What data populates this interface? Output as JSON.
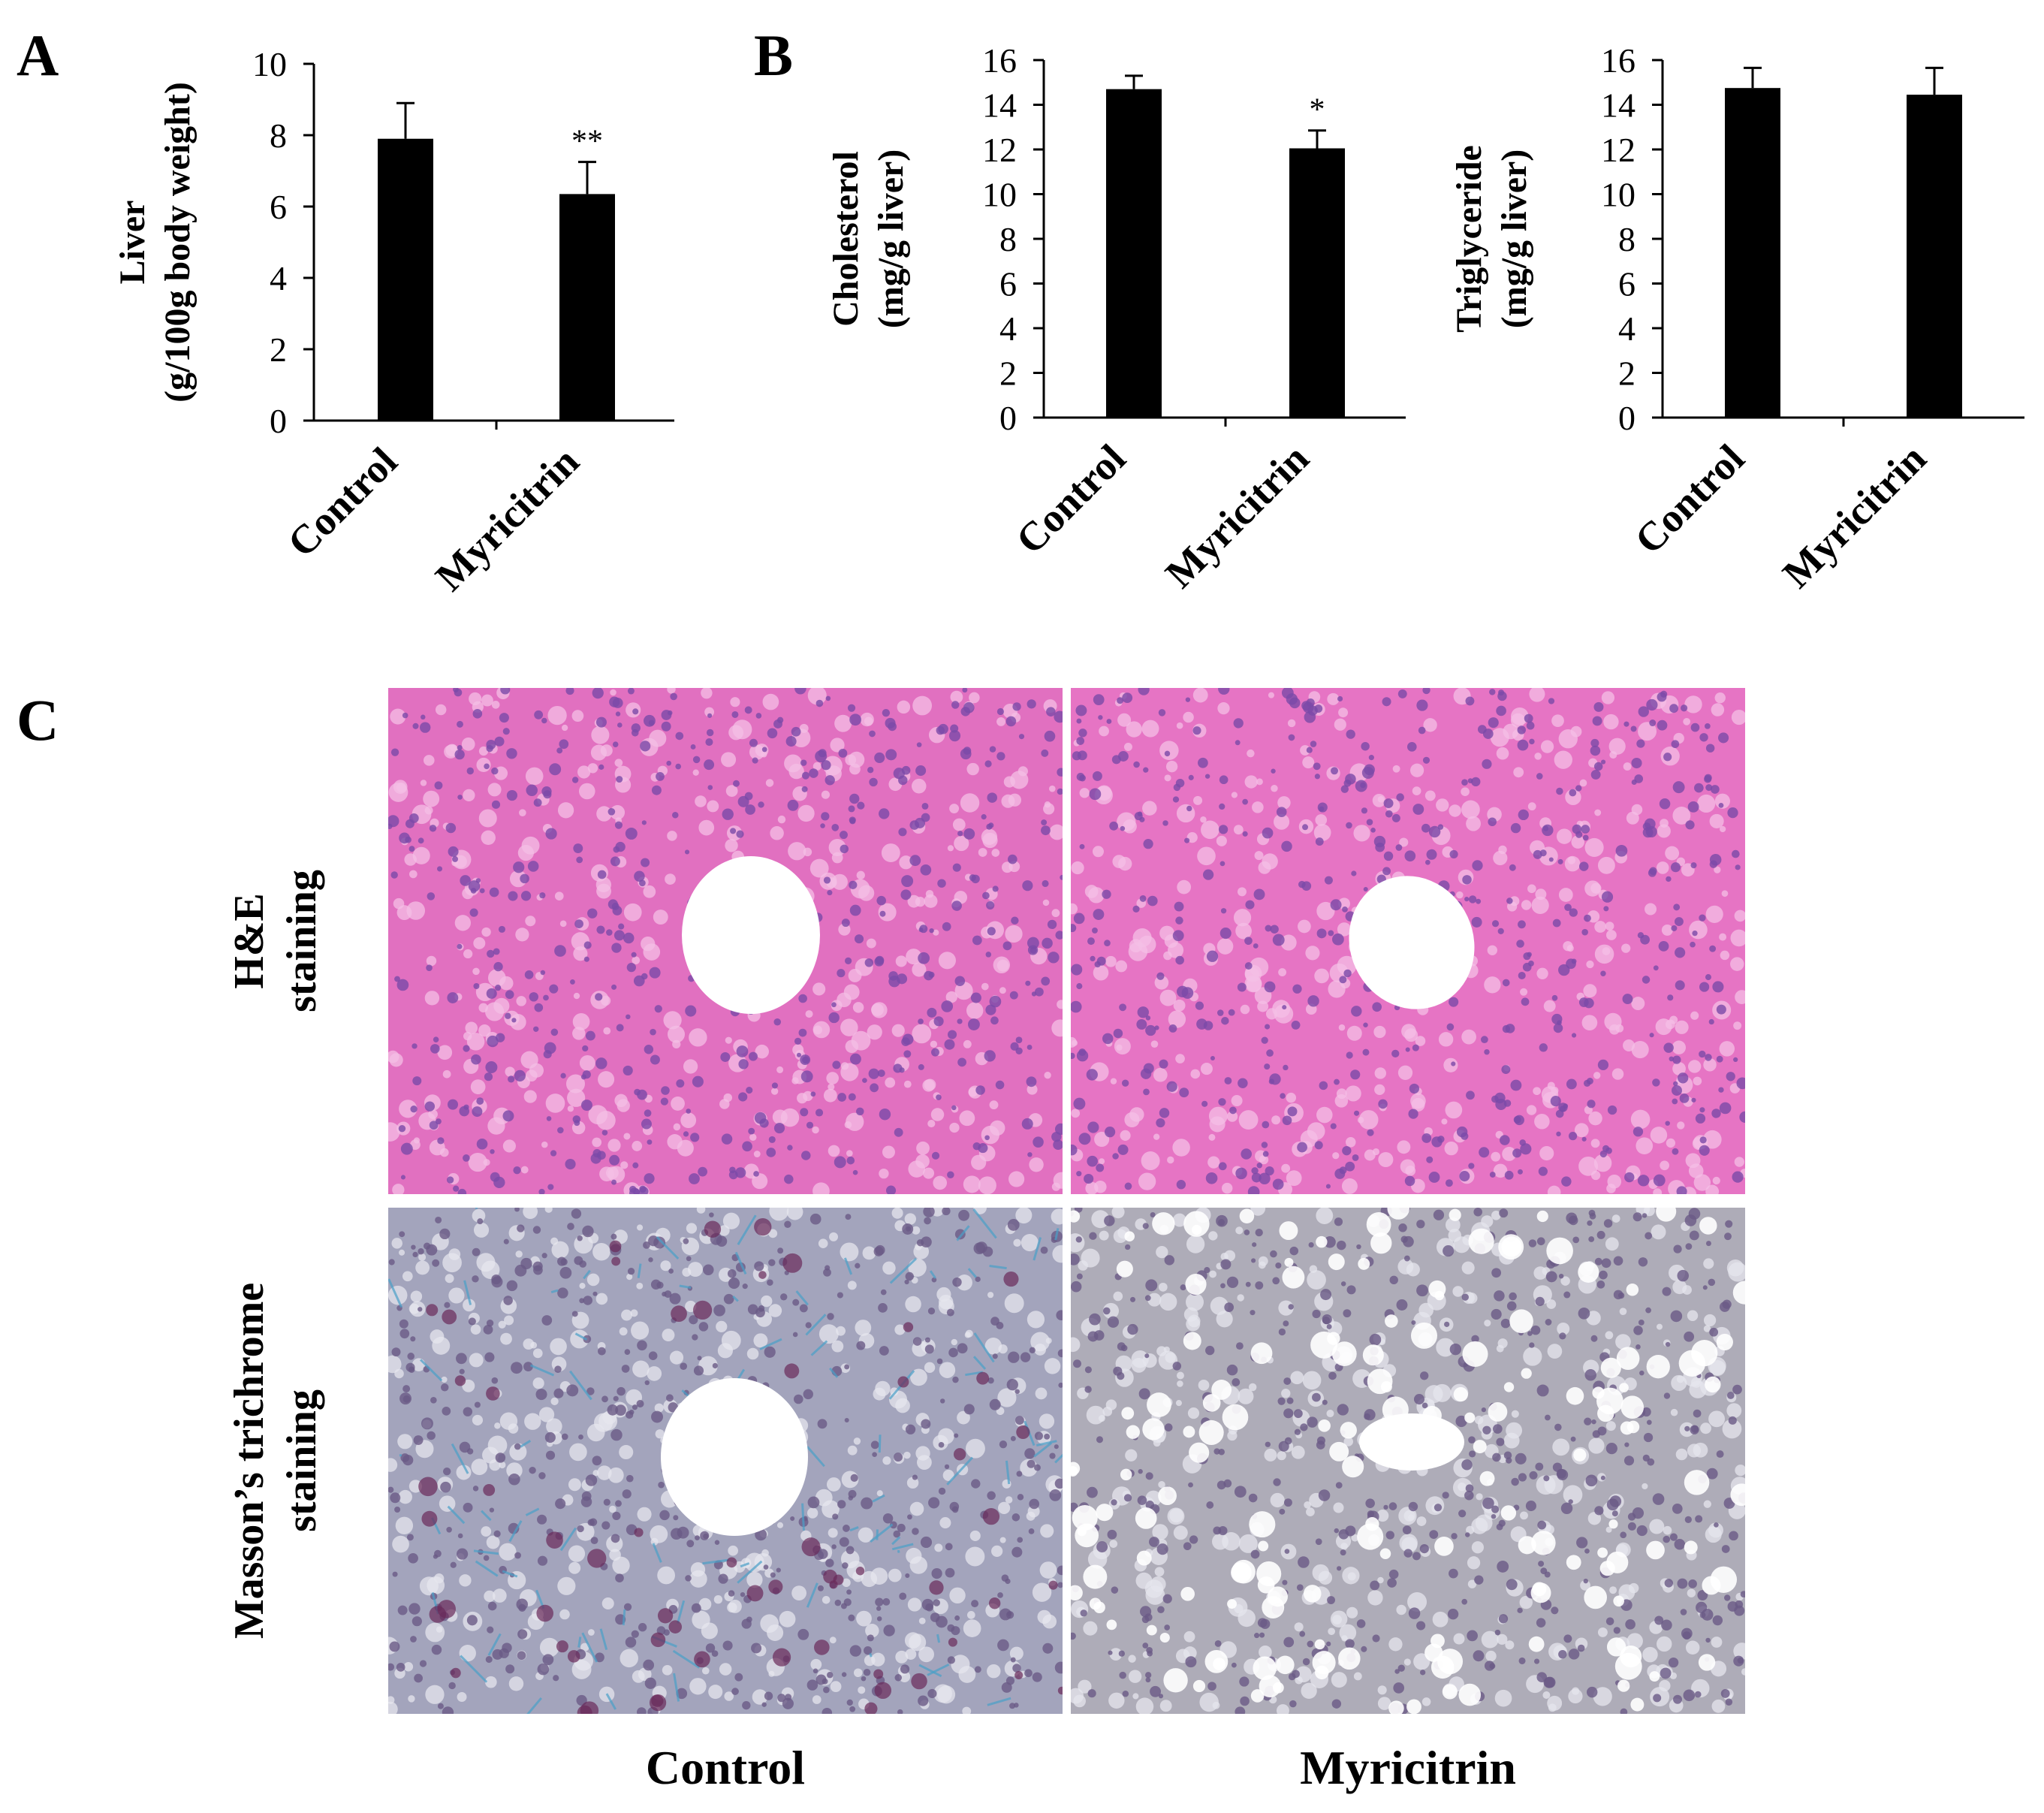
{
  "panels": {
    "a_letter": "A",
    "b_letter": "B",
    "c_letter": "C"
  },
  "chart_data": [
    {
      "type": "bar",
      "panel": "A",
      "categories": [
        "Control",
        "Myricitrin"
      ],
      "values": [
        7.9,
        6.35
      ],
      "errors": [
        1.0,
        0.9
      ],
      "significance": [
        "",
        "**"
      ],
      "ylabel_lines": [
        "Liver",
        "(g/100g body weight)"
      ],
      "yticks": [
        0,
        2,
        4,
        6,
        8,
        10
      ],
      "ylim": [
        0,
        10
      ],
      "colors": [
        "#000000",
        "#000000"
      ]
    },
    {
      "type": "bar",
      "panel": "B",
      "categories": [
        "Control",
        "Myricitrin"
      ],
      "values": [
        14.7,
        12.05
      ],
      "errors": [
        0.6,
        0.8
      ],
      "significance": [
        "",
        "*"
      ],
      "ylabel_lines": [
        "Cholesterol",
        "(mg/g liver)"
      ],
      "yticks": [
        0,
        2,
        4,
        6,
        8,
        10,
        12,
        14,
        16
      ],
      "ylim": [
        0,
        16
      ],
      "colors": [
        "#000000",
        "#000000"
      ]
    },
    {
      "type": "bar",
      "panel": "B",
      "categories": [
        "Control",
        "Myricitrin"
      ],
      "values": [
        14.75,
        14.45
      ],
      "errors": [
        0.9,
        1.2
      ],
      "significance": [
        "",
        ""
      ],
      "ylabel_lines": [
        "Triglyceride",
        "(mg/g liver)"
      ],
      "yticks": [
        0,
        2,
        4,
        6,
        8,
        10,
        12,
        14,
        16
      ],
      "ylim": [
        0,
        16
      ],
      "colors": [
        "#000000",
        "#000000"
      ]
    }
  ],
  "histology": {
    "row_labels": [
      [
        "H&E",
        "staining"
      ],
      [
        "Masson’s trichrome",
        "staining"
      ]
    ],
    "col_labels": [
      "Control",
      "Myricitrin"
    ],
    "colors": {
      "he_bg": "#e170c0",
      "he_nucleus": "#7a4aa8",
      "he_pale": "#f4bfe6",
      "masson_bg": "#a8a6ba",
      "masson_nucleus": "#6a5a86",
      "masson_collagen": "#4aa0c8",
      "masson_dark": "#6a2a5a",
      "vessel": "#ffffff"
    }
  }
}
